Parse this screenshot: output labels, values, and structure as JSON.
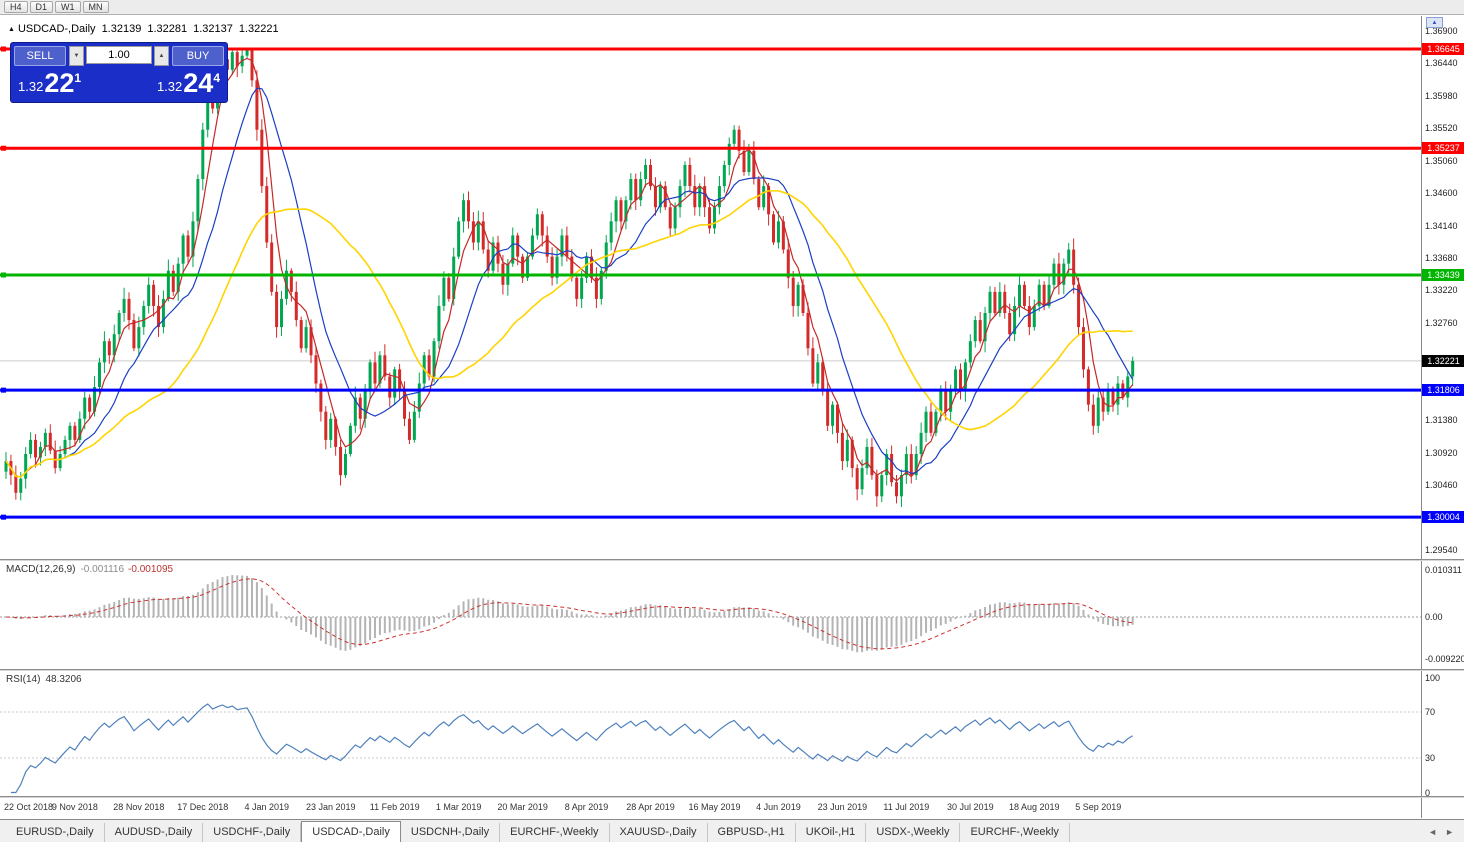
{
  "icons": {
    "collapse": "▲",
    "volume_down": "▼",
    "volume_up": "▲",
    "restore": "▲",
    "tab_scroll_left": "◄",
    "tab_scroll_right": "►"
  },
  "toolbar": {
    "timeframes": [
      "H4",
      "D1",
      "W1",
      "MN"
    ]
  },
  "chart_header": {
    "symbol": "USDCAD-,Daily",
    "open": "1.32139",
    "high": "1.32281",
    "low": "1.32137",
    "close": "1.32221"
  },
  "trade_panel": {
    "sell_label": "SELL",
    "buy_label": "BUY",
    "volume": "1.00",
    "sell_price": {
      "prefix": "1.32",
      "pips": "22",
      "pipette": "1"
    },
    "buy_price": {
      "prefix": "1.32",
      "pips": "24",
      "pipette": "4"
    }
  },
  "price_axis_ticks": [
    "1.36900",
    "1.36440",
    "1.35980",
    "1.35520",
    "1.35060",
    "1.34600",
    "1.34140",
    "1.33680",
    "1.33220",
    "1.32760",
    "1.32300",
    "1.31840",
    "1.31380",
    "1.30920",
    "1.30460",
    "1.30000",
    "1.29540"
  ],
  "chart_data": {
    "type": "candlestick",
    "symbol": "USDCAD",
    "timeframe": "Daily",
    "ylim": [
      1.2954,
      1.369
    ],
    "grid": false,
    "closes": [
      1.308,
      1.306,
      1.3035,
      1.3055,
      1.309,
      1.311,
      1.3085,
      1.31,
      1.312,
      1.3095,
      1.307,
      1.309,
      1.311,
      1.313,
      1.311,
      1.314,
      1.317,
      1.315,
      1.3185,
      1.322,
      1.325,
      1.323,
      1.326,
      1.329,
      1.331,
      1.328,
      1.324,
      1.327,
      1.33,
      1.333,
      1.33,
      1.327,
      1.331,
      1.335,
      1.332,
      1.336,
      1.34,
      1.337,
      1.342,
      1.348,
      1.355,
      1.361,
      1.358,
      1.362,
      1.365,
      1.3635,
      1.366,
      1.364,
      1.3655,
      1.3665,
      1.362,
      1.355,
      1.347,
      1.339,
      1.332,
      1.327,
      1.331,
      1.335,
      1.332,
      1.328,
      1.324,
      1.327,
      1.323,
      1.319,
      1.315,
      1.311,
      1.314,
      1.31,
      1.306,
      1.309,
      1.313,
      1.317,
      1.314,
      1.318,
      1.322,
      1.319,
      1.323,
      1.32,
      1.317,
      1.321,
      1.318,
      1.314,
      1.311,
      1.315,
      1.319,
      1.323,
      1.32,
      1.325,
      1.33,
      1.334,
      1.331,
      1.337,
      1.342,
      1.345,
      1.342,
      1.339,
      1.342,
      1.338,
      1.335,
      1.339,
      1.336,
      1.333,
      1.336,
      1.34,
      1.337,
      1.334,
      1.337,
      1.34,
      1.343,
      1.34,
      1.337,
      1.334,
      1.337,
      1.34,
      1.337,
      1.334,
      1.331,
      1.334,
      1.337,
      1.334,
      1.331,
      1.335,
      1.339,
      1.342,
      1.345,
      1.342,
      1.345,
      1.348,
      1.345,
      1.348,
      1.35,
      1.347,
      1.344,
      1.347,
      1.344,
      1.341,
      1.344,
      1.347,
      1.35,
      1.347,
      1.344,
      1.347,
      1.344,
      1.341,
      1.344,
      1.347,
      1.35,
      1.353,
      1.355,
      1.352,
      1.349,
      1.352,
      1.348,
      1.344,
      1.347,
      1.343,
      1.339,
      1.342,
      1.338,
      1.334,
      1.33,
      1.333,
      1.329,
      1.324,
      1.319,
      1.322,
      1.318,
      1.313,
      1.316,
      1.312,
      1.308,
      1.311,
      1.307,
      1.304,
      1.307,
      1.31,
      1.306,
      1.303,
      1.306,
      1.309,
      1.305,
      1.303,
      1.306,
      1.309,
      1.306,
      1.309,
      1.312,
      1.315,
      1.312,
      1.315,
      1.318,
      1.315,
      1.318,
      1.321,
      1.318,
      1.322,
      1.325,
      1.328,
      1.325,
      1.329,
      1.332,
      1.329,
      1.332,
      1.329,
      1.326,
      1.33,
      1.333,
      1.33,
      1.327,
      1.33,
      1.333,
      1.33,
      1.333,
      1.336,
      1.333,
      1.336,
      1.338,
      1.333,
      1.327,
      1.321,
      1.316,
      1.313,
      1.317,
      1.315,
      1.318,
      1.316,
      1.319,
      1.317,
      1.32,
      1.3222
    ],
    "x_labels": [
      {
        "i": 0,
        "label": "22 Oct 2018"
      },
      {
        "i": 14,
        "label": "9 Nov 2018"
      },
      {
        "i": 27,
        "label": "28 Nov 2018"
      },
      {
        "i": 40,
        "label": "17 Dec 2018"
      },
      {
        "i": 53,
        "label": "4 Jan 2019"
      },
      {
        "i": 66,
        "label": "23 Jan 2019"
      },
      {
        "i": 79,
        "label": "11 Feb 2019"
      },
      {
        "i": 92,
        "label": "1 Mar 2019"
      },
      {
        "i": 105,
        "label": "20 Mar 2019"
      },
      {
        "i": 118,
        "label": "8 Apr 2019"
      },
      {
        "i": 131,
        "label": "28 Apr 2019"
      },
      {
        "i": 144,
        "label": "16 May 2019"
      },
      {
        "i": 157,
        "label": "4 Jun 2019"
      },
      {
        "i": 170,
        "label": "23 Jun 2019"
      },
      {
        "i": 183,
        "label": "11 Jul 2019"
      },
      {
        "i": 196,
        "label": "30 Jul 2019"
      },
      {
        "i": 209,
        "label": "18 Aug 2019"
      },
      {
        "i": 222,
        "label": "5 Sep 2019"
      }
    ],
    "levels": [
      {
        "price": 1.36645,
        "label": "1.36645",
        "color": "#ff0000"
      },
      {
        "price": 1.35237,
        "label": "1.35237",
        "color": "#ff0000"
      },
      {
        "price": 1.33439,
        "label": "1.33439",
        "color": "#00b400"
      },
      {
        "price": 1.31806,
        "label": "1.31806",
        "color": "#0000ff"
      },
      {
        "price": 1.30004,
        "label": "1.30004",
        "color": "#0000ff"
      }
    ],
    "current_price": {
      "value": 1.32221,
      "label": "1.32221",
      "color": "#000000"
    },
    "colors": {
      "up": "#00a651",
      "down": "#d42a2a",
      "ma_fast": "#c62828",
      "ma_mid": "#1a3fc4",
      "ma_slow": "#ffd400"
    },
    "moving_averages": [
      {
        "period": 5,
        "color_key": "ma_fast"
      },
      {
        "period": 13,
        "color_key": "ma_mid"
      },
      {
        "period": 34,
        "color_key": "ma_slow"
      }
    ]
  },
  "macd_panel": {
    "name": "MACD(12,26,9)",
    "value_main": "-0.001116",
    "value_signal": "-0.001095",
    "axis_max": "0.010311",
    "axis_zero": "0.00",
    "axis_min": "-0.009220",
    "params": {
      "fast": 12,
      "slow": 26,
      "signal": 9
    },
    "colors": {
      "histogram": "#b4b4b4",
      "signal": "#cc3333"
    }
  },
  "rsi_panel": {
    "name": "RSI(14)",
    "value": "48.3206",
    "period": 14,
    "axis_labels": [
      "100",
      "70",
      "30",
      "0"
    ],
    "guide_levels": [
      70,
      30
    ],
    "color": "#4f81bd"
  },
  "tabs": {
    "active_index": 3,
    "items": [
      "EURUSD-,Daily",
      "AUDUSD-,Daily",
      "USDCHF-,Daily",
      "USDCAD-,Daily",
      "USDCNH-,Daily",
      "EURCHF-,Weekly",
      "XAUUSD-,Daily",
      "GBPUSD-,H1",
      "UKOil-,H1",
      "USDX-,Weekly",
      "EURCHF-,Weekly"
    ]
  }
}
